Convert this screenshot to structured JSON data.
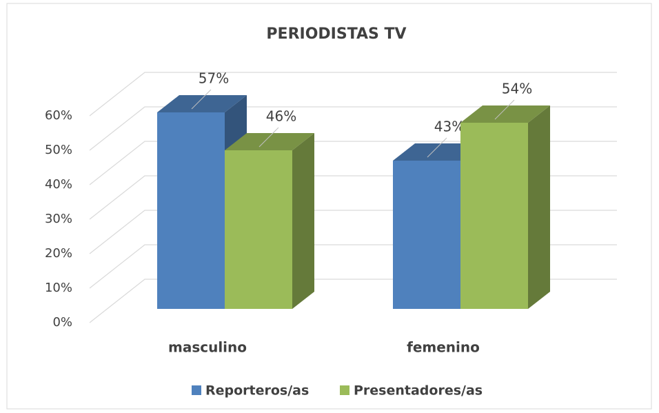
{
  "chart_data": {
    "type": "bar3d",
    "title": "PERIODISTAS TV",
    "categories": [
      "masculino",
      "femenino"
    ],
    "series": [
      {
        "name": "Reporteros/as",
        "color": "#4f81bd",
        "values": [
          57,
          43
        ],
        "value_labels": [
          "57%",
          "43%"
        ]
      },
      {
        "name": "Presentadores/as",
        "color": "#9bbb59",
        "values": [
          46,
          54
        ],
        "value_labels": [
          "46%",
          "54%"
        ]
      }
    ],
    "ylim": [
      0,
      60
    ],
    "yticks": [
      {
        "value": 0,
        "label": "0%"
      },
      {
        "value": 10,
        "label": "10%"
      },
      {
        "value": 20,
        "label": "20%"
      },
      {
        "value": 30,
        "label": "30%"
      },
      {
        "value": 40,
        "label": "40%"
      },
      {
        "value": 50,
        "label": "50%"
      },
      {
        "value": 60,
        "label": "60%"
      }
    ],
    "grid": true,
    "legend": "bottom"
  }
}
